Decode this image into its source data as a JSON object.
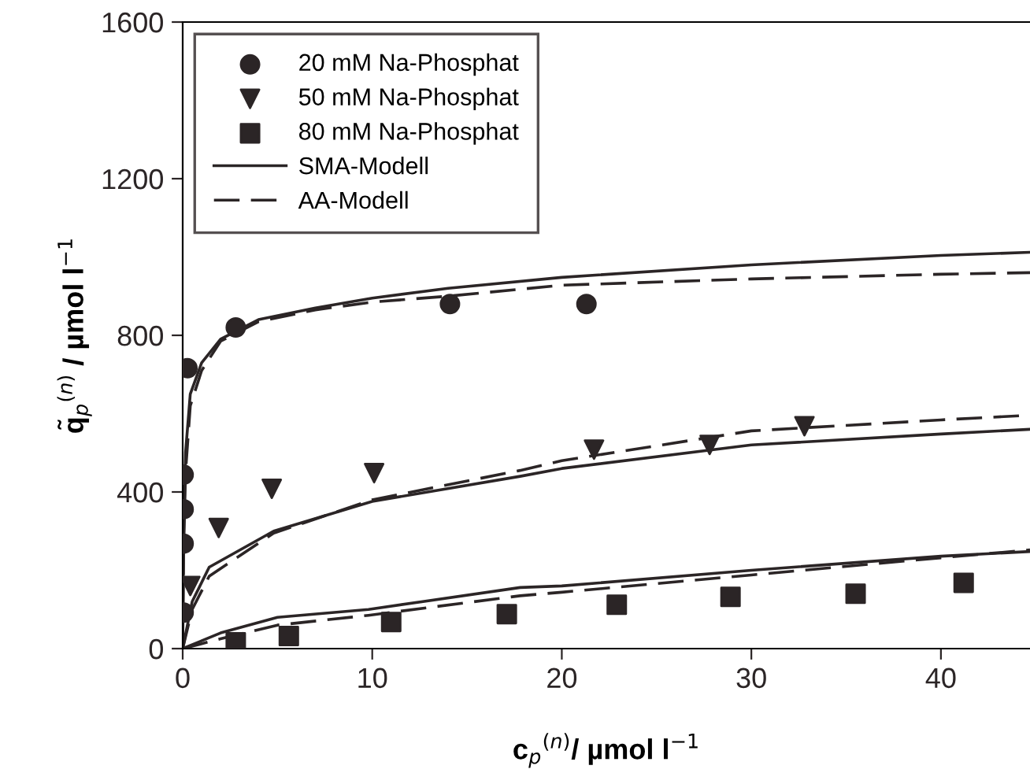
{
  "chart_data": {
    "type": "scatter",
    "xlabel": "c$_{p}$$^{(n)}$/ µmol l$^{−1}$",
    "ylabel": "q̃$_{p}$$^{(n)}$ / µmol l$^{−1}$",
    "xlim": [
      0,
      44.7
    ],
    "ylim": [
      0,
      1600
    ],
    "xticks": [
      0,
      10,
      20,
      30,
      40
    ],
    "yticks": [
      0,
      400,
      800,
      1200,
      1600
    ],
    "grid": false,
    "legend": "top left",
    "series": [
      {
        "name": "20 mM Na-Phosphat",
        "marker": "circle",
        "color": "#2b2526",
        "x": [
          0.05,
          0.05,
          0.05,
          0.05,
          0.25,
          2.8,
          14.1,
          21.3
        ],
        "values": [
          92,
          268,
          356,
          444,
          716,
          820,
          880,
          880
        ]
      },
      {
        "name": "50 mM Na-Phosphat",
        "marker": "triangle",
        "color": "#2b2526",
        "x": [
          0.4,
          1.9,
          4.7,
          10.1,
          21.7,
          27.8,
          32.8
        ],
        "values": [
          160,
          308,
          408,
          448,
          508,
          520,
          568
        ]
      },
      {
        "name": "80 mM Na-Phosphat",
        "marker": "square",
        "color": "#2b2526",
        "x": [
          2.8,
          5.6,
          11.0,
          17.1,
          22.9,
          28.9,
          35.5,
          41.2
        ],
        "values": [
          16,
          32,
          68,
          88,
          112,
          132,
          140,
          168
        ]
      },
      {
        "name": "SMA-Modell",
        "type": "line",
        "line_style": "solid",
        "color": "#2b2526",
        "x": [
          0,
          0.05,
          0.15,
          0.4,
          1,
          2,
          4,
          7,
          10,
          14,
          20,
          30,
          40,
          44.7
        ],
        "values": [
          0,
          300,
          500,
          650,
          730,
          790,
          840,
          870,
          895,
          920,
          948,
          980,
          1004,
          1012
        ]
      },
      {
        "name": "AA-Modell",
        "type": "line",
        "line_style": "dashed",
        "color": "#2b2526",
        "x": [
          0,
          0.05,
          0.15,
          0.4,
          1,
          2,
          4,
          7,
          10,
          14,
          20,
          30,
          40,
          44.7
        ],
        "values": [
          0,
          250,
          450,
          620,
          710,
          785,
          835,
          865,
          885,
          900,
          928,
          944,
          956,
          960
        ]
      },
      {
        "type": "line",
        "line_style": "solid",
        "color": "#2b2526",
        "x": [
          0,
          0.5,
          1.4,
          4.8,
          10,
          17.8,
          20,
          30,
          40,
          44.7
        ],
        "values": [
          0,
          120,
          208,
          300,
          376,
          440,
          460,
          520,
          548,
          560
        ]
      },
      {
        "type": "line",
        "line_style": "dashed",
        "color": "#2b2526",
        "x": [
          0,
          0.5,
          1.4,
          4.8,
          10,
          17.8,
          20,
          30,
          40,
          44.7
        ],
        "values": [
          0,
          100,
          185,
          295,
          380,
          455,
          480,
          556,
          584,
          596
        ]
      },
      {
        "type": "line",
        "line_style": "solid",
        "color": "#2b2526",
        "x": [
          0,
          2,
          5,
          9.8,
          17.8,
          20,
          30,
          40,
          44.7
        ],
        "values": [
          0,
          40,
          80,
          100,
          156,
          160,
          200,
          236,
          248
        ]
      },
      {
        "type": "line",
        "line_style": "dashed",
        "color": "#2b2526",
        "x": [
          0,
          2,
          5,
          9.8,
          17.8,
          20,
          30,
          40,
          44.7
        ],
        "values": [
          0,
          25,
          60,
          85,
          135,
          144,
          188,
          232,
          252
        ]
      }
    ]
  }
}
